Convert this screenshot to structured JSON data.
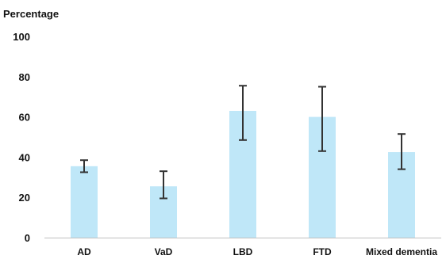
{
  "chart_data": {
    "type": "bar",
    "title": "",
    "ylabel": "Percentage",
    "xlabel": "",
    "ylim": [
      0,
      100
    ],
    "yticks": [
      0,
      20,
      40,
      60,
      80,
      100
    ],
    "grid": false,
    "legend": "none",
    "categories": [
      "AD",
      "VaD",
      "LBD",
      "FTD",
      "Mixed dementia"
    ],
    "values": [
      35.5,
      25.5,
      63,
      60,
      42.5
    ],
    "error_low": [
      32.5,
      19.5,
      48.5,
      43,
      34
    ],
    "error_high": [
      38.5,
      33,
      75.5,
      75,
      51.5
    ],
    "colors": {
      "bar": "#bfe7f8",
      "error_bar": "#333333",
      "axis": "#bfbfbf",
      "text": "#111111"
    }
  }
}
